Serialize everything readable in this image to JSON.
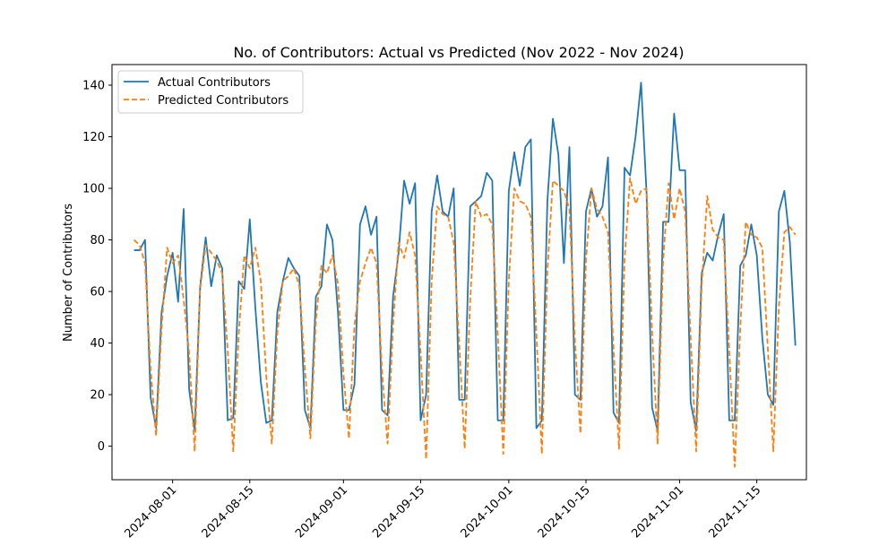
{
  "chart_data": {
    "type": "line",
    "title": "No. of Contributors: Actual vs Predicted (Nov 2022 - Nov 2024)",
    "xlabel": "",
    "ylabel": "Number of Contributors",
    "x_ticks": [
      "2024-08-01",
      "2024-08-15",
      "2024-09-01",
      "2024-09-15",
      "2024-10-01",
      "2024-10-15",
      "2024-11-01",
      "2024-11-15"
    ],
    "y_ticks": [
      "0",
      "20",
      "40",
      "60",
      "80",
      "100",
      "120",
      "140"
    ],
    "ylim": [
      -13,
      148
    ],
    "xlim": [
      "2024-07-21",
      "2024-11-24"
    ],
    "legend_position": "top-left",
    "grid": false,
    "series": [
      {
        "name": "Actual Contributors",
        "color": "#1f77b4",
        "style": "solid",
        "points": [
          [
            "2024-07-25",
            76
          ],
          [
            "2024-07-26",
            76
          ],
          [
            "2024-07-27",
            80
          ],
          [
            "2024-07-28",
            19
          ],
          [
            "2024-07-29",
            7
          ],
          [
            "2024-07-30",
            52
          ],
          [
            "2024-07-31",
            66
          ],
          [
            "2024-08-01",
            75
          ],
          [
            "2024-08-02",
            56
          ],
          [
            "2024-08-03",
            92
          ],
          [
            "2024-08-04",
            22
          ],
          [
            "2024-08-05",
            6
          ],
          [
            "2024-08-06",
            62
          ],
          [
            "2024-08-07",
            81
          ],
          [
            "2024-08-08",
            62
          ],
          [
            "2024-08-09",
            74
          ],
          [
            "2024-08-10",
            69
          ],
          [
            "2024-08-11",
            10
          ],
          [
            "2024-08-12",
            11
          ],
          [
            "2024-08-13",
            64
          ],
          [
            "2024-08-14",
            61
          ],
          [
            "2024-08-15",
            88
          ],
          [
            "2024-08-16",
            54
          ],
          [
            "2024-08-17",
            25
          ],
          [
            "2024-08-18",
            9
          ],
          [
            "2024-08-19",
            10
          ],
          [
            "2024-08-20",
            52
          ],
          [
            "2024-08-21",
            64
          ],
          [
            "2024-08-22",
            73
          ],
          [
            "2024-08-23",
            69
          ],
          [
            "2024-08-24",
            66
          ],
          [
            "2024-08-25",
            14
          ],
          [
            "2024-08-26",
            7
          ],
          [
            "2024-08-27",
            58
          ],
          [
            "2024-08-28",
            62
          ],
          [
            "2024-08-29",
            86
          ],
          [
            "2024-08-30",
            80
          ],
          [
            "2024-08-31",
            52
          ],
          [
            "2024-09-01",
            14
          ],
          [
            "2024-09-02",
            14
          ],
          [
            "2024-09-03",
            24
          ],
          [
            "2024-09-04",
            86
          ],
          [
            "2024-09-05",
            93
          ],
          [
            "2024-09-06",
            82
          ],
          [
            "2024-09-07",
            89
          ],
          [
            "2024-09-08",
            14
          ],
          [
            "2024-09-09",
            12
          ],
          [
            "2024-09-10",
            58
          ],
          [
            "2024-09-11",
            75
          ],
          [
            "2024-09-12",
            103
          ],
          [
            "2024-09-13",
            94
          ],
          [
            "2024-09-14",
            102
          ],
          [
            "2024-09-15",
            10
          ],
          [
            "2024-09-16",
            20
          ],
          [
            "2024-09-17",
            91
          ],
          [
            "2024-09-18",
            105
          ],
          [
            "2024-09-19",
            91
          ],
          [
            "2024-09-20",
            89
          ],
          [
            "2024-09-21",
            100
          ],
          [
            "2024-09-22",
            18
          ],
          [
            "2024-09-23",
            18
          ],
          [
            "2024-09-24",
            93
          ],
          [
            "2024-09-25",
            95
          ],
          [
            "2024-09-26",
            97
          ],
          [
            "2024-09-27",
            106
          ],
          [
            "2024-09-28",
            103
          ],
          [
            "2024-09-29",
            10
          ],
          [
            "2024-09-30",
            10
          ],
          [
            "2024-10-01",
            99
          ],
          [
            "2024-10-02",
            114
          ],
          [
            "2024-10-03",
            101
          ],
          [
            "2024-10-04",
            116
          ],
          [
            "2024-10-05",
            119
          ],
          [
            "2024-10-06",
            7
          ],
          [
            "2024-10-07",
            10
          ],
          [
            "2024-10-08",
            95
          ],
          [
            "2024-10-09",
            127
          ],
          [
            "2024-10-10",
            113
          ],
          [
            "2024-10-11",
            71
          ],
          [
            "2024-10-12",
            116
          ],
          [
            "2024-10-13",
            20
          ],
          [
            "2024-10-14",
            18
          ],
          [
            "2024-10-15",
            91
          ],
          [
            "2024-10-16",
            100
          ],
          [
            "2024-10-17",
            89
          ],
          [
            "2024-10-18",
            93
          ],
          [
            "2024-10-19",
            112
          ],
          [
            "2024-10-20",
            13
          ],
          [
            "2024-10-21",
            9
          ],
          [
            "2024-10-22",
            108
          ],
          [
            "2024-10-23",
            105
          ],
          [
            "2024-10-24",
            120
          ],
          [
            "2024-10-25",
            141
          ],
          [
            "2024-10-26",
            98
          ],
          [
            "2024-10-27",
            15
          ],
          [
            "2024-10-28",
            6
          ],
          [
            "2024-10-29",
            87
          ],
          [
            "2024-10-30",
            87
          ],
          [
            "2024-10-31",
            129
          ],
          [
            "2024-11-01",
            107
          ],
          [
            "2024-11-02",
            107
          ],
          [
            "2024-11-03",
            17
          ],
          [
            "2024-11-04",
            6
          ],
          [
            "2024-11-05",
            67
          ],
          [
            "2024-11-06",
            75
          ],
          [
            "2024-11-07",
            72
          ],
          [
            "2024-11-08",
            82
          ],
          [
            "2024-11-09",
            90
          ],
          [
            "2024-11-10",
            10
          ],
          [
            "2024-11-11",
            10
          ],
          [
            "2024-11-12",
            70
          ],
          [
            "2024-11-13",
            74
          ],
          [
            "2024-11-14",
            86
          ],
          [
            "2024-11-15",
            74
          ],
          [
            "2024-11-16",
            42
          ],
          [
            "2024-11-17",
            20
          ],
          [
            "2024-11-18",
            16
          ],
          [
            "2024-11-19",
            91
          ],
          [
            "2024-11-20",
            99
          ],
          [
            "2024-11-21",
            79
          ],
          [
            "2024-11-22",
            39
          ]
        ]
      },
      {
        "name": "Predicted Contributors",
        "color": "#ff7f0e",
        "style": "dashed",
        "points": [
          [
            "2024-07-25",
            80
          ],
          [
            "2024-07-26",
            78
          ],
          [
            "2024-07-27",
            71
          ],
          [
            "2024-07-28",
            30
          ],
          [
            "2024-07-29",
            4
          ],
          [
            "2024-07-30",
            46
          ],
          [
            "2024-07-31",
            77
          ],
          [
            "2024-08-01",
            71
          ],
          [
            "2024-08-02",
            74
          ],
          [
            "2024-08-03",
            57
          ],
          [
            "2024-08-04",
            36
          ],
          [
            "2024-08-05",
            -2
          ],
          [
            "2024-08-06",
            61
          ],
          [
            "2024-08-07",
            78
          ],
          [
            "2024-08-08",
            75
          ],
          [
            "2024-08-09",
            72
          ],
          [
            "2024-08-10",
            67
          ],
          [
            "2024-08-11",
            37
          ],
          [
            "2024-08-12",
            -2
          ],
          [
            "2024-08-13",
            44
          ],
          [
            "2024-08-14",
            74
          ],
          [
            "2024-08-15",
            69
          ],
          [
            "2024-08-16",
            77
          ],
          [
            "2024-08-17",
            64
          ],
          [
            "2024-08-18",
            27
          ],
          [
            "2024-08-19",
            1
          ],
          [
            "2024-08-20",
            44
          ],
          [
            "2024-08-21",
            64
          ],
          [
            "2024-08-22",
            66
          ],
          [
            "2024-08-23",
            69
          ],
          [
            "2024-08-24",
            62
          ],
          [
            "2024-08-25",
            30
          ],
          [
            "2024-08-26",
            3
          ],
          [
            "2024-08-27",
            49
          ],
          [
            "2024-08-28",
            70
          ],
          [
            "2024-08-29",
            67
          ],
          [
            "2024-08-30",
            74
          ],
          [
            "2024-08-31",
            63
          ],
          [
            "2024-09-01",
            28
          ],
          [
            "2024-09-02",
            3
          ],
          [
            "2024-09-03",
            47
          ],
          [
            "2024-09-04",
            64
          ],
          [
            "2024-09-05",
            71
          ],
          [
            "2024-09-06",
            77
          ],
          [
            "2024-09-07",
            71
          ],
          [
            "2024-09-08",
            29
          ],
          [
            "2024-09-09",
            1
          ],
          [
            "2024-09-10",
            47
          ],
          [
            "2024-09-11",
            79
          ],
          [
            "2024-09-12",
            73
          ],
          [
            "2024-09-13",
            83
          ],
          [
            "2024-09-14",
            74
          ],
          [
            "2024-09-15",
            36
          ],
          [
            "2024-09-16",
            -5
          ],
          [
            "2024-09-17",
            64
          ],
          [
            "2024-09-18",
            93
          ],
          [
            "2024-09-19",
            90
          ],
          [
            "2024-09-20",
            89
          ],
          [
            "2024-09-21",
            79
          ],
          [
            "2024-09-22",
            40
          ],
          [
            "2024-09-23",
            -1
          ],
          [
            "2024-09-24",
            57
          ],
          [
            "2024-09-25",
            95
          ],
          [
            "2024-09-26",
            89
          ],
          [
            "2024-09-27",
            90
          ],
          [
            "2024-09-28",
            86
          ],
          [
            "2024-09-29",
            43
          ],
          [
            "2024-09-30",
            -3
          ],
          [
            "2024-10-01",
            64
          ],
          [
            "2024-10-02",
            100
          ],
          [
            "2024-10-03",
            95
          ],
          [
            "2024-10-04",
            94
          ],
          [
            "2024-10-05",
            89
          ],
          [
            "2024-10-06",
            44
          ],
          [
            "2024-10-07",
            -3
          ],
          [
            "2024-10-08",
            68
          ],
          [
            "2024-10-09",
            103
          ],
          [
            "2024-10-10",
            101
          ],
          [
            "2024-10-11",
            99
          ],
          [
            "2024-10-12",
            92
          ],
          [
            "2024-10-13",
            41
          ],
          [
            "2024-10-14",
            5
          ],
          [
            "2024-10-15",
            72
          ],
          [
            "2024-10-16",
            100
          ],
          [
            "2024-10-17",
            92
          ],
          [
            "2024-10-18",
            89
          ],
          [
            "2024-10-19",
            83
          ],
          [
            "2024-10-20",
            38
          ],
          [
            "2024-10-21",
            -1
          ],
          [
            "2024-10-22",
            72
          ],
          [
            "2024-10-23",
            104
          ],
          [
            "2024-10-24",
            94
          ],
          [
            "2024-10-25",
            99
          ],
          [
            "2024-10-26",
            100
          ],
          [
            "2024-10-27",
            44
          ],
          [
            "2024-10-28",
            1
          ],
          [
            "2024-10-29",
            72
          ],
          [
            "2024-10-30",
            102
          ],
          [
            "2024-10-31",
            88
          ],
          [
            "2024-11-01",
            100
          ],
          [
            "2024-11-02",
            91
          ],
          [
            "2024-11-03",
            42
          ],
          [
            "2024-11-04",
            -2
          ],
          [
            "2024-11-05",
            62
          ],
          [
            "2024-11-06",
            97
          ],
          [
            "2024-11-07",
            84
          ],
          [
            "2024-11-08",
            81
          ],
          [
            "2024-11-09",
            80
          ],
          [
            "2024-11-10",
            37
          ],
          [
            "2024-11-11",
            -8
          ],
          [
            "2024-11-12",
            46
          ],
          [
            "2024-11-13",
            87
          ],
          [
            "2024-11-14",
            82
          ],
          [
            "2024-11-15",
            81
          ],
          [
            "2024-11-16",
            77
          ],
          [
            "2024-11-17",
            38
          ],
          [
            "2024-11-18",
            -2
          ],
          [
            "2024-11-19",
            54
          ],
          [
            "2024-11-20",
            83
          ],
          [
            "2024-11-21",
            85
          ],
          [
            "2024-11-22",
            82
          ]
        ]
      }
    ]
  }
}
